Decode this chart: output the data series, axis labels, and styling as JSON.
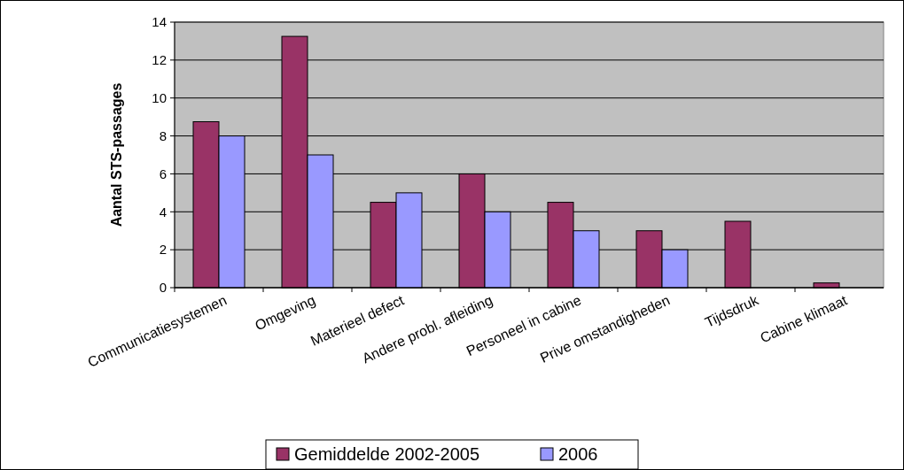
{
  "chart_data": {
    "type": "bar",
    "ylabel": "Aantal STS-passages",
    "categories": [
      "Communicatiesystemen",
      "Omgeving",
      "Materieel defect",
      "Andere probl. afleiding",
      "Personeel in cabine",
      "Prive omstandigheden",
      "Tijdsdruk",
      "Cabine klimaat"
    ],
    "series": [
      {
        "name": "Gemiddelde 2002-2005",
        "color": "#993366",
        "values": [
          8.75,
          13.25,
          4.5,
          6,
          4.5,
          3,
          3.5,
          0.25
        ]
      },
      {
        "name": "2006",
        "color": "#9999ff",
        "values": [
          8,
          7,
          5,
          4,
          3,
          2,
          0,
          0
        ]
      }
    ],
    "ylim": [
      0,
      14
    ],
    "yticks": [
      0,
      2,
      4,
      6,
      8,
      10,
      12,
      14
    ],
    "grid": "y",
    "legend": "bottom"
  }
}
